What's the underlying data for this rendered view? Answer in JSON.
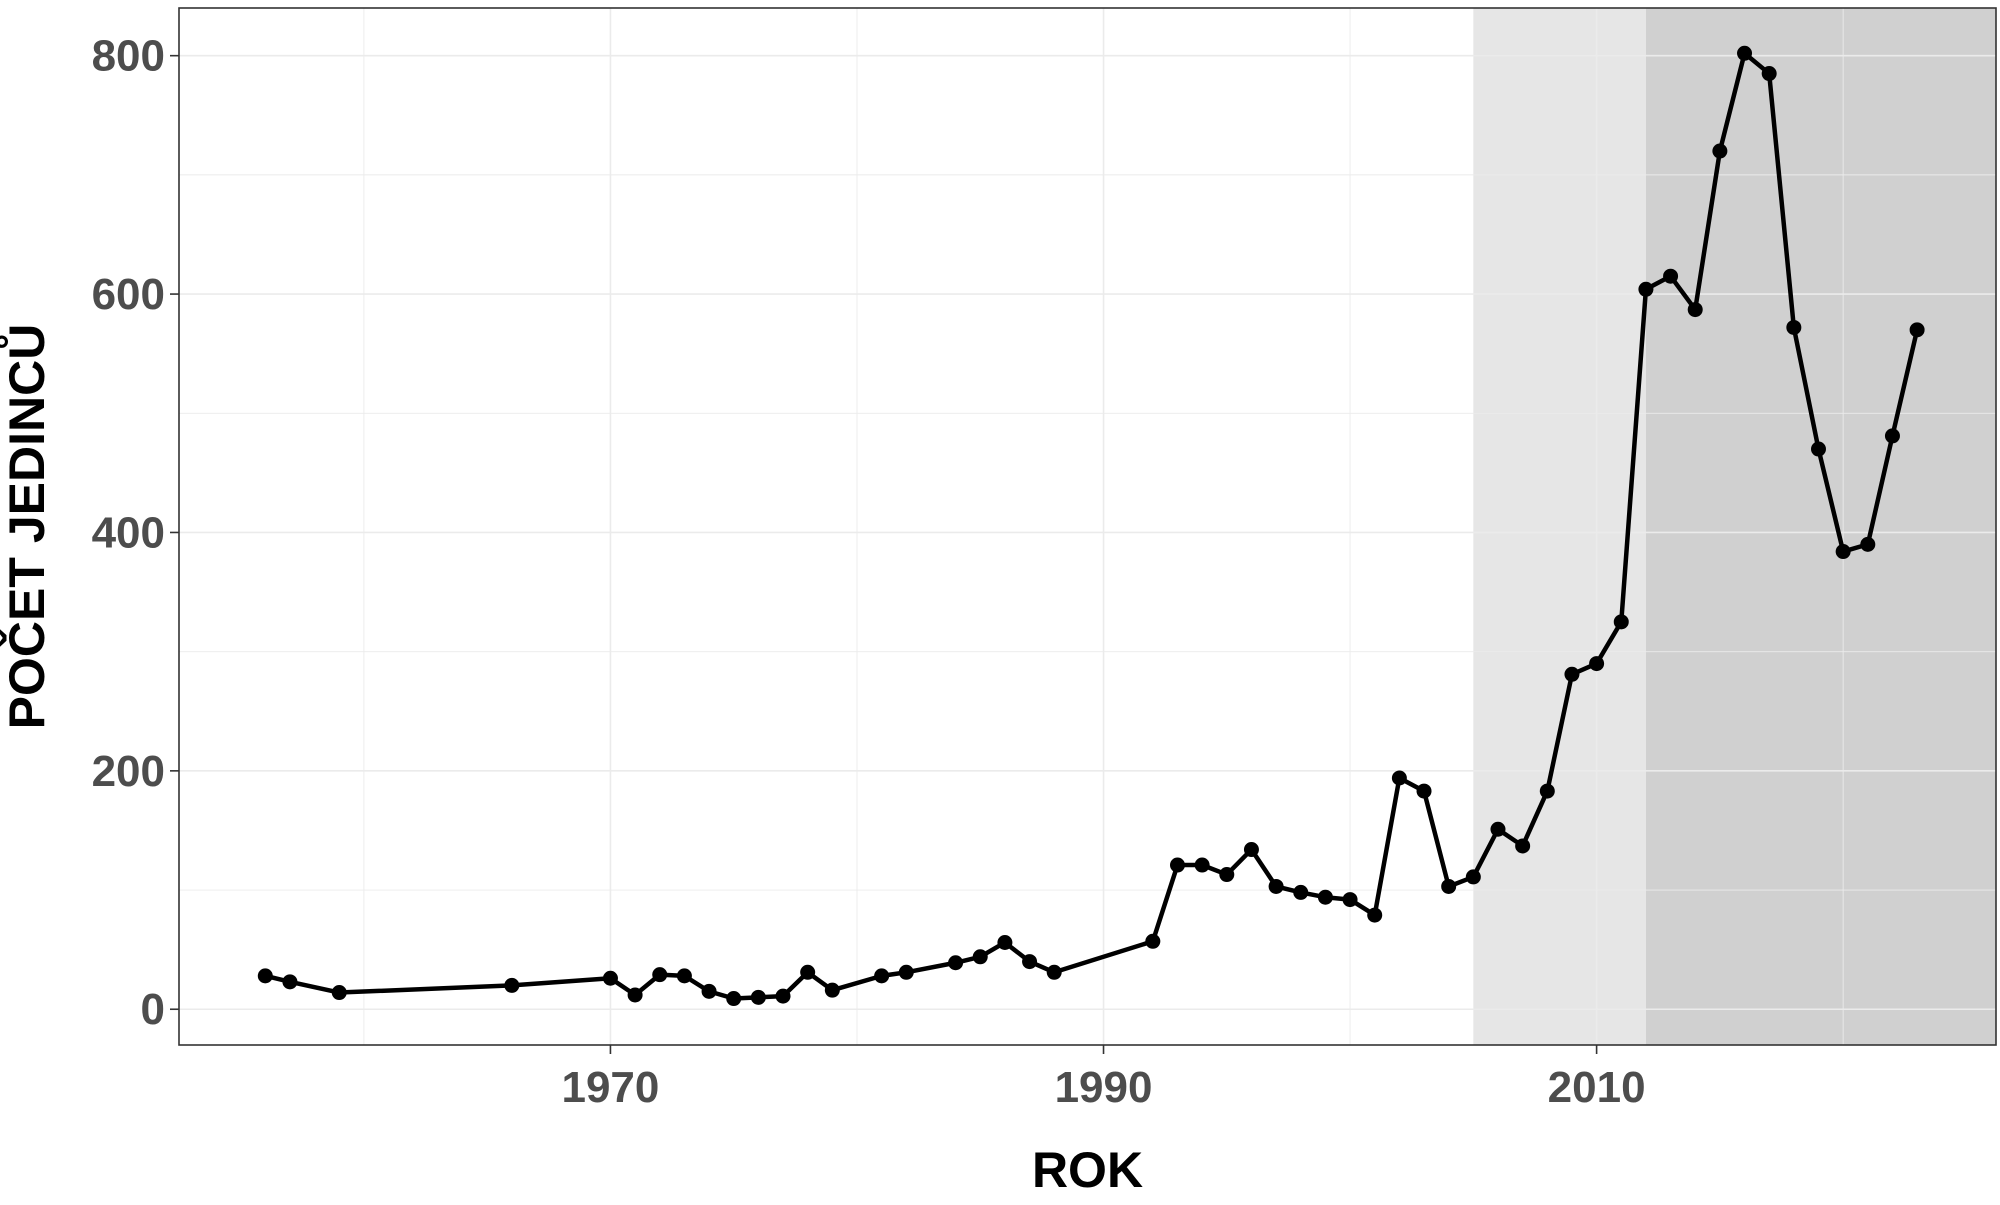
{
  "chart_data": {
    "type": "line",
    "title": "",
    "xlabel": "ROK",
    "ylabel": "POČET JEDINCŮ",
    "xlim": [
      1952.5,
      2026.2
    ],
    "ylim": [
      -30,
      840
    ],
    "xticks": [
      1970,
      1990,
      2010
    ],
    "yticks": [
      0,
      200,
      400,
      600,
      800
    ],
    "grid": true,
    "legend": "none",
    "shaded_periods": [
      {
        "from": 2005,
        "to": 2012,
        "color": "#e6e6e6"
      },
      {
        "from": 2012,
        "to": 2026.2,
        "color": "#d0d0d0"
      }
    ],
    "series": [
      {
        "color": "#000000",
        "x": [
          1956,
          1957,
          1959,
          1966,
          1970,
          1971,
          1972,
          1973,
          1974,
          1975,
          1976,
          1977,
          1978,
          1979,
          1981,
          1982,
          1984,
          1985,
          1986,
          1987,
          1988,
          1992,
          1993,
          1994,
          1995,
          1996,
          1997,
          1998,
          1999,
          2000,
          2001,
          2002,
          2003,
          2004,
          2005,
          2006,
          2007,
          2008,
          2009,
          2010,
          2011,
          2012,
          2013,
          2014,
          2015,
          2016,
          2017,
          2018,
          2019,
          2020,
          2021,
          2022,
          2023
        ],
        "y": [
          28,
          23,
          14,
          20,
          26,
          12,
          29,
          28,
          15,
          9,
          10,
          11,
          31,
          16,
          28,
          31,
          39,
          44,
          56,
          40,
          31,
          57,
          121,
          121,
          113,
          134,
          103,
          98,
          94,
          92,
          79,
          194,
          183,
          103,
          111,
          151,
          137,
          183,
          281,
          290,
          325,
          604,
          615,
          587,
          720,
          802,
          785,
          572,
          470,
          384,
          390,
          481,
          570
        ]
      }
    ]
  },
  "colors": {
    "panel_background": "#ffffff",
    "grid": "#ebebeb",
    "panel_border": "#333333",
    "line": "#000000",
    "tick_text": "#4d4d4d",
    "title_text": "#000000"
  }
}
